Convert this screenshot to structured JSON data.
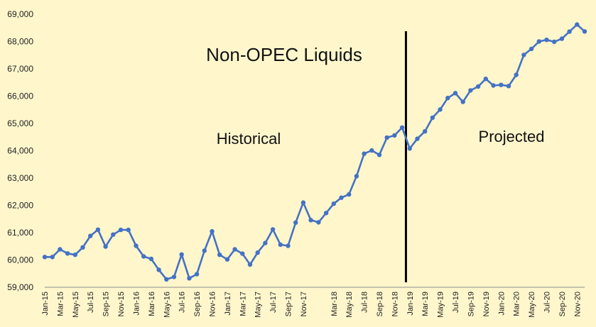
{
  "chart_data": {
    "type": "line",
    "title": "Non-OPEC Liquids",
    "annotations": [
      "Historical",
      "Projected"
    ],
    "xlabel": "",
    "ylabel": "",
    "ylim": [
      59000,
      69000
    ],
    "yticks": [
      59000,
      60000,
      61000,
      62000,
      63000,
      64000,
      65000,
      66000,
      67000,
      68000,
      69000
    ],
    "ytick_labels": [
      "59,000",
      "60,000",
      "61,000",
      "62,000",
      "63,000",
      "64,000",
      "65,000",
      "66,000",
      "67,000",
      "68,000",
      "69,000"
    ],
    "x": [
      "Jan-15",
      "Feb-15",
      "Mar-15",
      "Apr-15",
      "May-15",
      "Jun-15",
      "Jul-15",
      "Aug-15",
      "Sep-15",
      "Oct-15",
      "Nov-15",
      "Dec-15",
      "Jan-16",
      "Feb-16",
      "Mar-16",
      "Apr-16",
      "May-16",
      "Jun-16",
      "Jul-16",
      "Aug-16",
      "Sep-16",
      "Oct-16",
      "Nov-16",
      "Dec-16",
      "Jan-17",
      "Feb-17",
      "Mar-17",
      "Apr-17",
      "May-17",
      "Jun-17",
      "Jul-17",
      "Aug-17",
      "Sep-17",
      "Oct-17",
      "Nov-17",
      "Dec-17",
      "Jan-18",
      "Feb-18",
      "Mar-18",
      "Apr-18",
      "May-18",
      "Jun-18",
      "Jul-18",
      "Aug-18",
      "Sep-18",
      "Oct-18",
      "Nov-18",
      "Dec-18",
      "Jan-19",
      "Feb-19",
      "Mar-19",
      "Apr-19",
      "May-19",
      "Jun-19",
      "Jul-19",
      "Aug-19",
      "Sep-19",
      "Oct-19",
      "Nov-19",
      "Dec-19",
      "Jan-20",
      "Feb-20",
      "Mar-20",
      "Apr-20",
      "May-20",
      "Jun-20",
      "Jul-20",
      "Aug-20",
      "Sep-20",
      "Oct-20",
      "Nov-20",
      "Dec-20"
    ],
    "x_tick_labels": [
      "Jan-15",
      "Mar-15",
      "May-15",
      "Jul-15",
      "Sep-15",
      "Nov-15",
      "Jan-16",
      "Mar-16",
      "May-16",
      "Jul-16",
      "Sep-16",
      "Nov-16",
      "Jan-17",
      "Mar-17",
      "May-17",
      "Jul-17",
      "Sep-17",
      "Nov-17",
      "Mar-18",
      "May-18",
      "Jul-18",
      "Sep-18",
      "Nov-18",
      "Jan-19",
      "Mar-19",
      "May-19",
      "Jul-19",
      "Sep-19",
      "Nov-19",
      "Jan-20",
      "Mar-20",
      "May-20",
      "Jul-20",
      "Sep-20",
      "Nov-20"
    ],
    "series": [
      {
        "values": [
          60110,
          60110,
          60390,
          60240,
          60190,
          60460,
          60880,
          61110,
          60490,
          60930,
          61100,
          61100,
          60520,
          60130,
          60040,
          59640,
          59290,
          59380,
          60200,
          59330,
          59480,
          60340,
          61050,
          60190,
          60020,
          60390,
          60230,
          59830,
          60270,
          60620,
          61120,
          60560,
          60520,
          61370,
          62100,
          61460,
          61380,
          61720,
          62060,
          62280,
          62400,
          63070,
          63890,
          64010,
          63850,
          64480,
          64560,
          64850,
          64080,
          64440,
          64710,
          65210,
          65510,
          65930,
          66110,
          65790,
          66210,
          66350,
          66630,
          66390,
          66410,
          66370,
          66780,
          67510,
          67730,
          68000,
          68060,
          67990,
          68100,
          68360,
          68620,
          68370
        ],
        "color": "#4472C4"
      }
    ],
    "divider_after": "Dec-18",
    "divider_color": "#000000",
    "grid": false,
    "legend": false,
    "background": "#FFF6CC"
  }
}
